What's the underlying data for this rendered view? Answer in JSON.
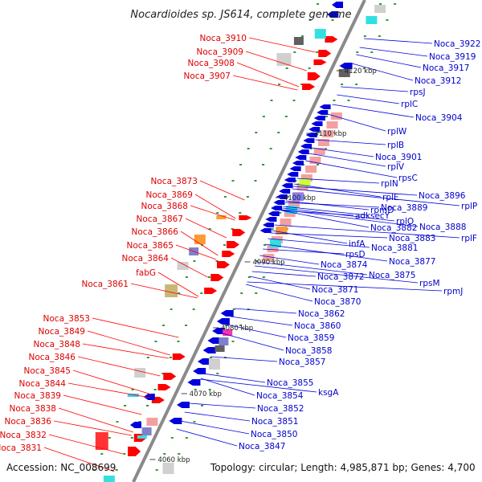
{
  "title": "Nocardioides sp. JS614, complete genome",
  "accession": "Accession: NC_008699",
  "topology": "Topology: circular; Length: 4,985,871 bp; Genes: 4,700",
  "colors": {
    "forward": "#ff0000",
    "reverse": "#0000dd",
    "backbone": "#888888",
    "tick": "#339933",
    "leftLabel": "#dd0000",
    "rightLabel": "#0000cc"
  },
  "ticks": [
    {
      "label": "4120 kbp",
      "kbp": 4120
    },
    {
      "label": "4110 kbp",
      "kbp": 4110
    },
    {
      "label": "4100 kbp",
      "kbp": 4100
    },
    {
      "label": "4090 kbp",
      "kbp": 4090
    },
    {
      "label": "4080 kbp",
      "kbp": 4080
    },
    {
      "label": "4070 kbp",
      "kbp": 4070
    },
    {
      "label": "4060 kbp",
      "kbp": 4060
    }
  ],
  "leftLabels": [
    "Noca_3910",
    "Noca_3909",
    "Noca_3908",
    "Noca_3907",
    "Noca_3873",
    "Noca_3869",
    "Noca_3868",
    "Noca_3867",
    "Noca_3866",
    "Noca_3865",
    "Noca_3864",
    "fabG",
    "Noca_3861",
    "Noca_3853",
    "Noca_3849",
    "Noca_3848",
    "Noca_3846",
    "Noca_3845",
    "Noca_3844",
    "Noca_3839",
    "Noca_3838",
    "Noca_3836",
    "Noca_3832",
    "Noca_3831"
  ],
  "rightLabels": [
    "Noca_3922",
    "Noca_3919",
    "Noca_3917",
    "Noca_3912",
    "rpsJ",
    "rplC",
    "Noca_3904",
    "rplW",
    "rplB",
    "Noca_3901",
    "rplV",
    "rpsC",
    "rplN",
    "Noca_3896",
    "rplE",
    "rplP",
    "Noca_3889",
    "rpmD",
    "rplF",
    "Noca_3888",
    "adk",
    "secY",
    "rplO",
    "Noca_3882",
    "Noca_3883",
    "Noca_3881",
    "infA",
    "Noca_3877",
    "rpsD",
    "Noca_3874",
    "Noca_3875",
    "rpsM",
    "Noca_3872",
    "rpmJ",
    "Noca_3871",
    "Noca_3870",
    "Noca_3862",
    "Noca_3860",
    "Noca_3859",
    "Noca_3858",
    "Noca_3857",
    "Noca_3855",
    "ksgA",
    "Noca_3854",
    "Noca_3852",
    "Noca_3851",
    "Noca_3850",
    "Noca_3847"
  ]
}
